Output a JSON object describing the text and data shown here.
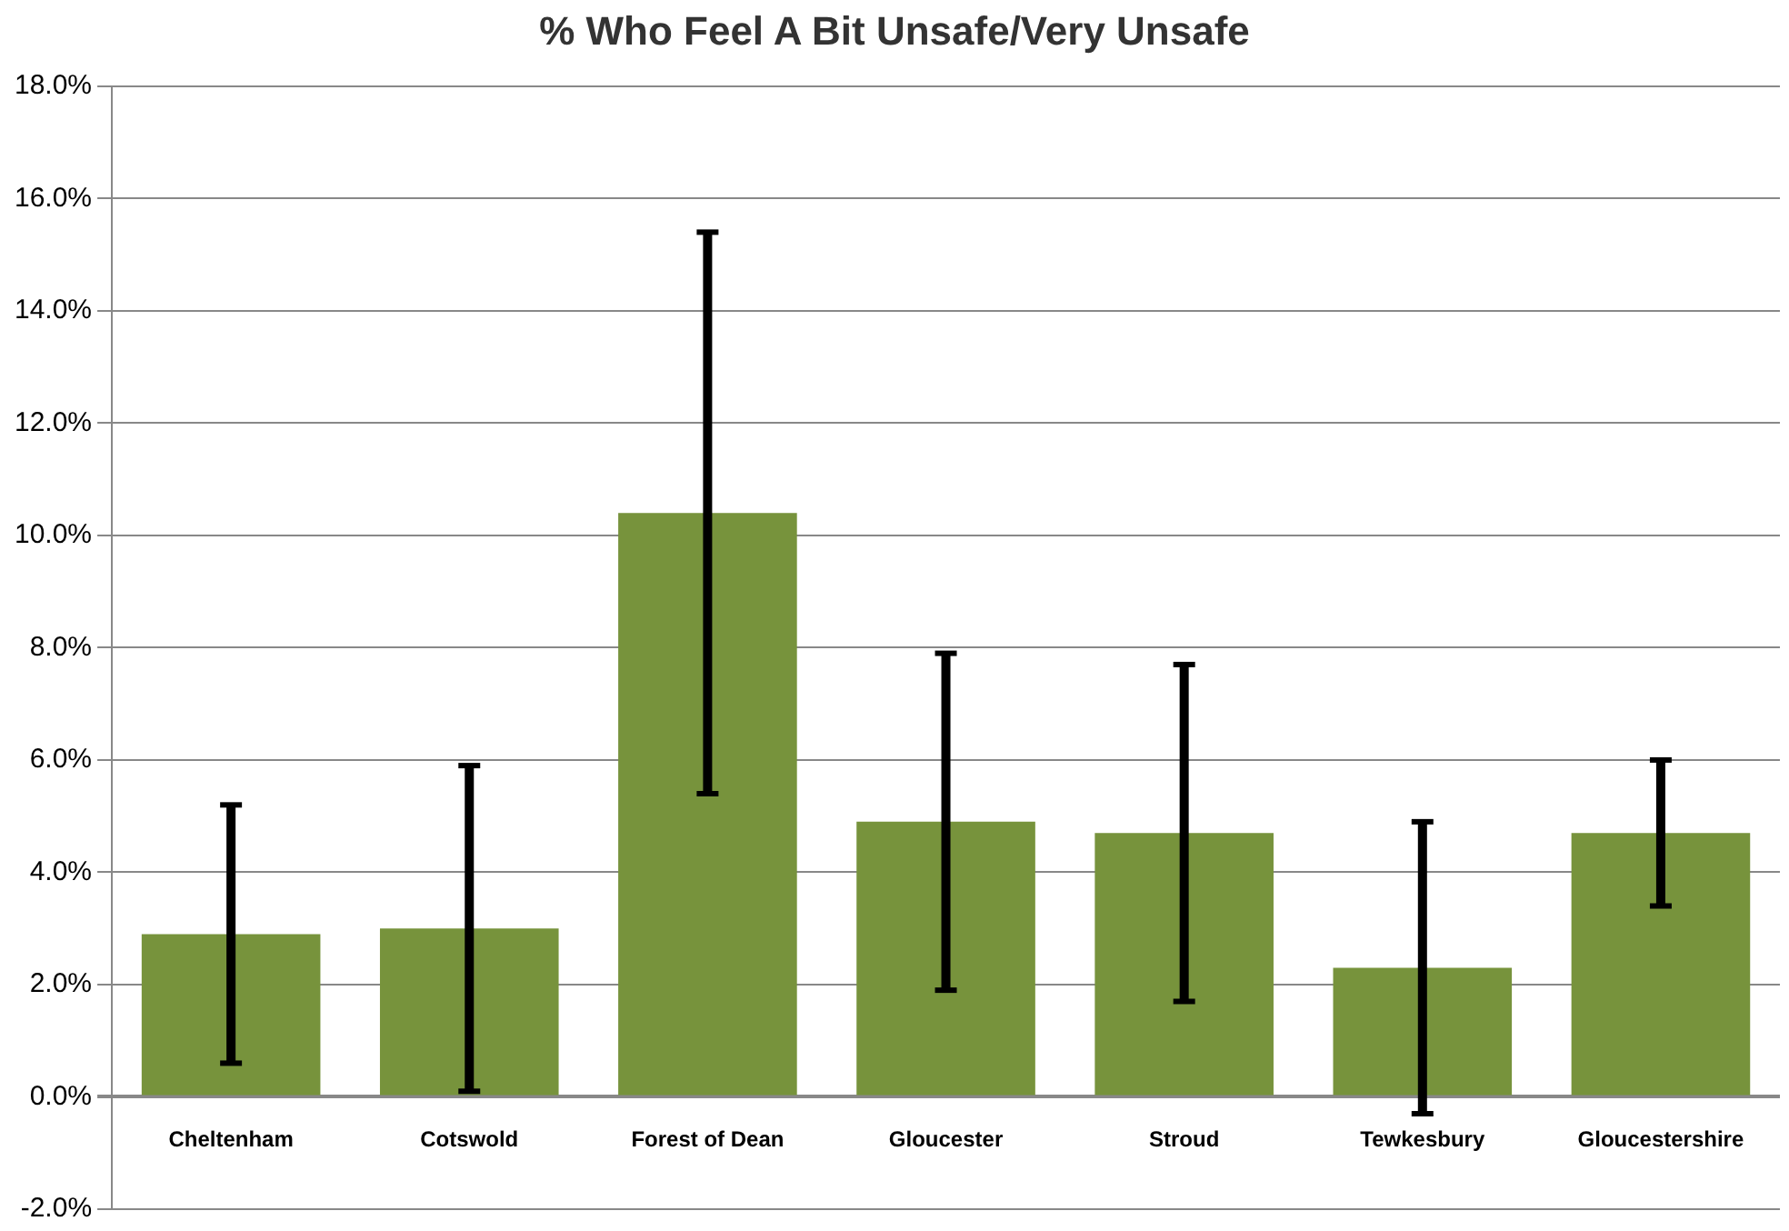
{
  "chart_data": {
    "type": "bar",
    "title": "% Who Feel A Bit Unsafe/Very Unsafe",
    "categories": [
      "Cheltenham",
      "Cotswold",
      "Forest of Dean",
      "Gloucester",
      "Stroud",
      "Tewkesbury",
      "Gloucestershire"
    ],
    "values": [
      2.9,
      3.0,
      10.4,
      4.9,
      4.7,
      2.3,
      4.7
    ],
    "errors": [
      [
        0.6,
        5.2
      ],
      [
        0.1,
        5.9
      ],
      [
        5.4,
        15.4
      ],
      [
        1.9,
        7.9
      ],
      [
        1.7,
        7.7
      ],
      [
        -0.3,
        4.9
      ],
      [
        3.4,
        6.0
      ]
    ],
    "color": "#77933c",
    "ylim": [
      -2,
      18
    ],
    "yticks": [
      {
        "value": -2,
        "label": "-2.0%"
      },
      {
        "value": 0,
        "label": "0.0%"
      },
      {
        "value": 2,
        "label": "2.0%"
      },
      {
        "value": 4,
        "label": "4.0%"
      },
      {
        "value": 6,
        "label": "6.0%"
      },
      {
        "value": 8,
        "label": "8.0%"
      },
      {
        "value": 10,
        "label": "10.0%"
      },
      {
        "value": 12,
        "label": "12.0%"
      },
      {
        "value": 14,
        "label": "14.0%"
      },
      {
        "value": 16,
        "label": "16.0%"
      },
      {
        "value": 18,
        "label": "18.0%"
      }
    ],
    "grid": "y",
    "legend": false
  }
}
